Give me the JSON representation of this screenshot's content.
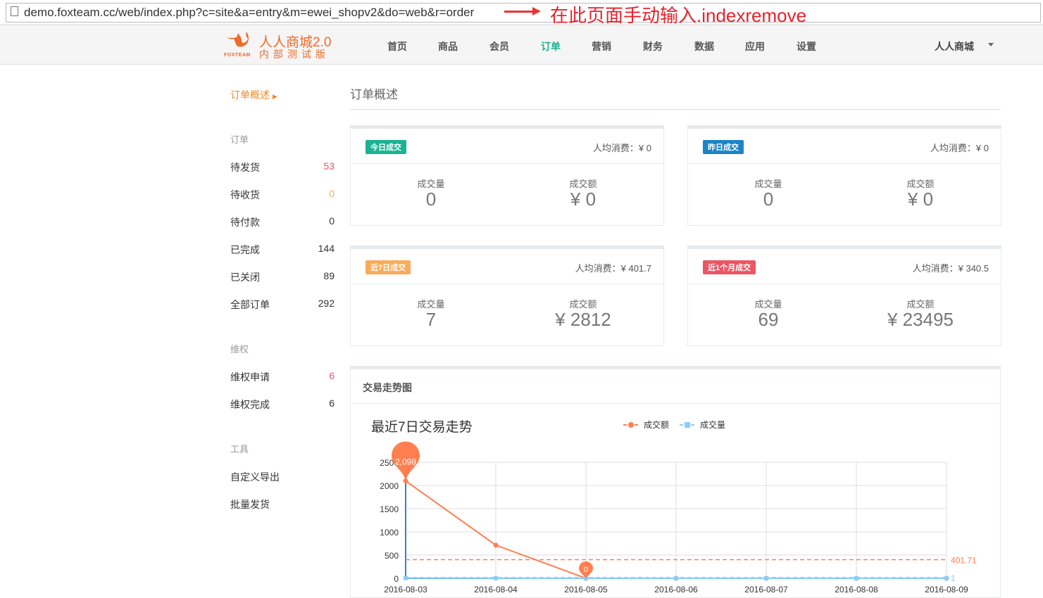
{
  "browser": {
    "url": "demo.foxteam.cc/web/index.php?c=site&a=entry&m=ewei_shopv2&do=web&r=order",
    "annotation": "在此页面手动输入.indexremove"
  },
  "logo": {
    "brand": "FOXTEAM",
    "title": "人人商城2.0",
    "subtitle": "内部测试版"
  },
  "nav": {
    "items": [
      "首页",
      "商品",
      "会员",
      "订单",
      "营销",
      "财务",
      "数据",
      "应用",
      "设置"
    ],
    "active": "订单",
    "user": "人人商城"
  },
  "sidebar": {
    "current": "订单概述",
    "sections": [
      {
        "title": "订单",
        "items": [
          {
            "label": "待发货",
            "count": "53",
            "color": "#ed5565"
          },
          {
            "label": "待收货",
            "count": "0",
            "color": "#f8ac59"
          },
          {
            "label": "待付款",
            "count": "0",
            "color": "#333333"
          },
          {
            "label": "已完成",
            "count": "144",
            "color": "#333333"
          },
          {
            "label": "已关闭",
            "count": "89",
            "color": "#333333"
          },
          {
            "label": "全部订单",
            "count": "292",
            "color": "#333333"
          }
        ]
      },
      {
        "title": "维权",
        "items": [
          {
            "label": "维权申请",
            "count": "6",
            "color": "#ed5565"
          },
          {
            "label": "维权完成",
            "count": "6",
            "color": "#333333"
          }
        ]
      },
      {
        "title": "工具",
        "items": [
          {
            "label": "自定义导出",
            "count": ""
          },
          {
            "label": "批量发货",
            "count": ""
          }
        ]
      }
    ]
  },
  "page_title": "订单概述",
  "cards": [
    {
      "badge": "今日成交",
      "badge_color": "#1ab394",
      "avg": "人均消费：¥ 0",
      "qty_label": "成交量",
      "qty": "0",
      "amt_label": "成交额",
      "amt": "¥ 0"
    },
    {
      "badge": "昨日成交",
      "badge_color": "#1c84c6",
      "avg": "人均消费：¥ 0",
      "qty_label": "成交量",
      "qty": "0",
      "amt_label": "成交额",
      "amt": "¥ 0"
    },
    {
      "badge": "近7日成交",
      "badge_color": "#f8ac59",
      "avg": "人均消费：¥ 401.7",
      "qty_label": "成交量",
      "qty": "7",
      "amt_label": "成交额",
      "amt": "¥ 2812"
    },
    {
      "badge": "近1个月成交",
      "badge_color": "#ed5565",
      "avg": "人均消费：¥ 340.5",
      "qty_label": "成交量",
      "qty": "69",
      "amt_label": "成交额",
      "amt": "¥ 23495"
    }
  ],
  "chart_panel_title": "交易走势图",
  "chart_data": {
    "type": "line",
    "title": "最近7日交易走势",
    "categories": [
      "2016-08-03",
      "2016-08-04",
      "2016-08-05",
      "2016-08-06",
      "2016-08-07",
      "2016-08-08",
      "2016-08-09"
    ],
    "series": [
      {
        "name": "成交额",
        "color": "#ff7f50",
        "values": [
          2098,
          714,
          0,
          0,
          0,
          0,
          0
        ],
        "max_label": "2,098",
        "min_label": "0",
        "mean_label": "401.71"
      },
      {
        "name": "成交量",
        "color": "#87cefa",
        "values": [
          6,
          1,
          0,
          0,
          0,
          0,
          0
        ],
        "mean_label": "1"
      }
    ],
    "yticks": [
      0,
      500,
      1000,
      1500,
      2000,
      2500
    ],
    "ylim": [
      0,
      2500
    ],
    "grid": true,
    "legend": "top-center"
  }
}
